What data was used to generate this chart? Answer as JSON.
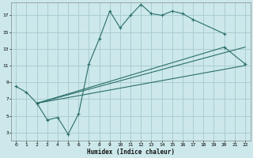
{
  "xlabel": "Humidex (Indice chaleur)",
  "bg_color": "#cce8ea",
  "grid_color": "#aacdd4",
  "line_color": "#2a6e6a",
  "xlim": [
    -0.5,
    22.5
  ],
  "ylim": [
    2,
    18.5
  ],
  "xticks": [
    0,
    1,
    2,
    3,
    4,
    5,
    6,
    7,
    8,
    9,
    10,
    11,
    12,
    13,
    14,
    15,
    16,
    17,
    18,
    19,
    20,
    21,
    22
  ],
  "yticks": [
    3,
    5,
    7,
    9,
    11,
    13,
    15,
    17
  ],
  "line1_x": [
    0,
    1,
    2,
    3,
    4,
    5,
    6,
    7,
    8,
    9,
    10,
    11,
    12,
    13,
    14,
    15,
    16,
    17,
    20
  ],
  "line1_y": [
    8.5,
    7.8,
    6.5,
    4.5,
    4.8,
    2.8,
    5.2,
    11.2,
    14.2,
    17.5,
    15.5,
    17.0,
    18.3,
    17.2,
    17.0,
    17.5,
    17.2,
    16.5,
    14.8
  ],
  "line2_x": [
    2,
    22
  ],
  "line2_y": [
    6.5,
    11.0
  ],
  "line3_x": [
    2,
    22
  ],
  "line3_y": [
    6.5,
    13.2
  ],
  "line4_x": [
    2,
    20,
    22
  ],
  "line4_y": [
    6.5,
    13.2,
    11.2
  ]
}
